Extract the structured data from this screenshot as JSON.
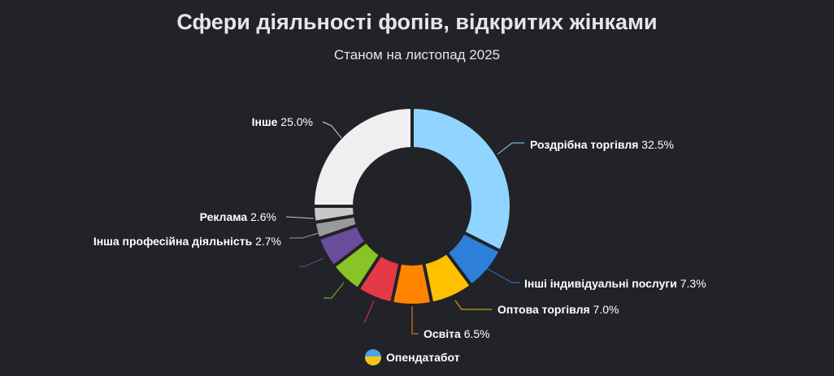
{
  "title": "Сфери діяльності фопів, відкритих жінками",
  "subtitle": "Станом на листопад 2025",
  "brand": "Опендатабот",
  "chart_data": {
    "type": "pie",
    "variant": "donut",
    "title": "Сфери діяльності фопів, відкритих жінками",
    "subtitle": "Станом на листопад 2025",
    "unit": "%",
    "slices": [
      {
        "name": "Роздрібна торгівля",
        "value": 32.5,
        "label": "32.5%",
        "color": "#90d5ff"
      },
      {
        "name": "Інші індивідуальні послуги",
        "value": 7.3,
        "label": "7.3%",
        "color": "#2e7fd9"
      },
      {
        "name": "Оптова торгівля",
        "value": 7.0,
        "label": "7.0%",
        "color": "#ffc000"
      },
      {
        "name": "Освіта",
        "value": 6.5,
        "label": "6.5%",
        "color": "#ff8400"
      },
      {
        "name": "",
        "value": 5.9,
        "label": "",
        "color": "#e63946"
      },
      {
        "name": "",
        "value": 5.4,
        "label": "",
        "color": "#88c425"
      },
      {
        "name": "",
        "value": 5.1,
        "label": "",
        "color": "#6a4c9c"
      },
      {
        "name": "Інша професійна діяльність",
        "value": 2.7,
        "label": "2.7%",
        "color": "#9a9a9a"
      },
      {
        "name": "Реклама",
        "value": 2.6,
        "label": "2.6%",
        "color": "#c8c8c8"
      },
      {
        "name": "Інше",
        "value": 25.0,
        "label": "25.0%",
        "color": "#efefef"
      }
    ],
    "legend": "none"
  }
}
